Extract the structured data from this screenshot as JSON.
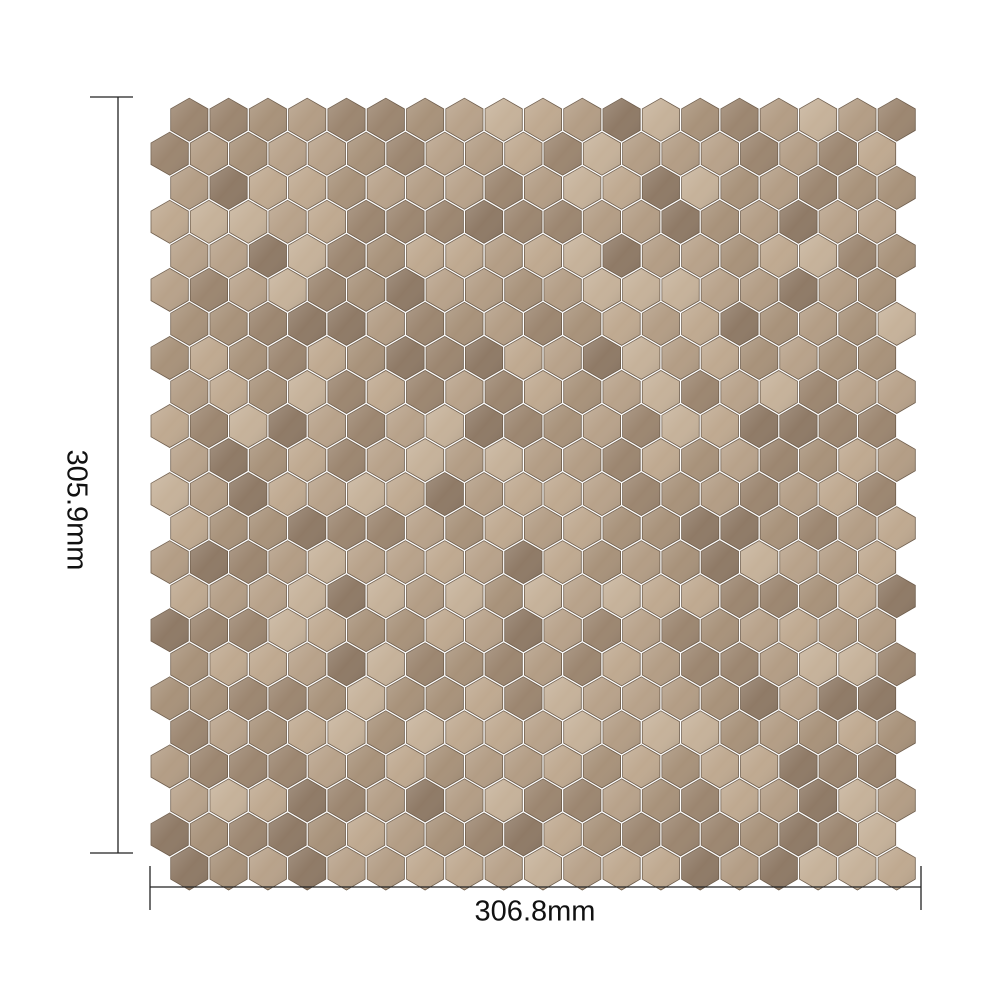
{
  "product": {
    "height_label": "305.9mm",
    "width_label": "306.8mm",
    "tile_shape": "hexagon",
    "tile_colors": [
      "#a8927a",
      "#b39d85",
      "#bfa990",
      "#9c8670",
      "#c6b29a",
      "#8f7a66",
      "#b8a28a"
    ]
  }
}
